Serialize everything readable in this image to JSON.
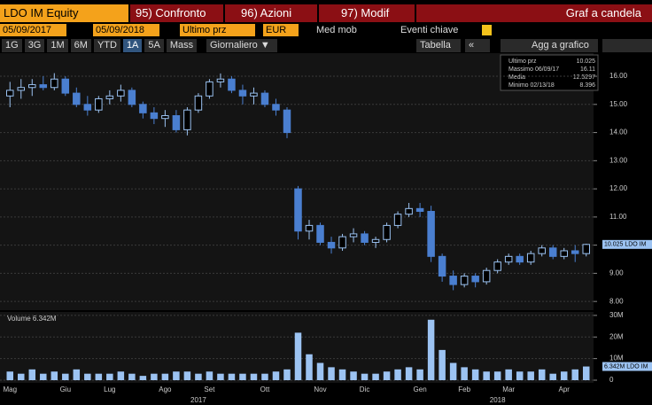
{
  "toolbar": {
    "security": "LDO IM Equity",
    "tabs": [
      "95) Confronto",
      "96) Azioni",
      "97) Modif"
    ],
    "title": "Graf a candela"
  },
  "controls": {
    "start": "05/09/2017",
    "end": "05/09/2018",
    "field": "Ultimo prz",
    "currency": "EUR",
    "checks": [
      "Med mob",
      "Eventi chiave"
    ],
    "periods": [
      "1G",
      "3G",
      "1M",
      "6M",
      "YTD",
      "1A",
      "5A",
      "Mass"
    ],
    "frequency": "Giornaliero ▼",
    "table": "Tabella",
    "collapse": "«",
    "add": "Agg a grafico"
  },
  "legend": {
    "labels": [
      "Ultimo prz",
      "Massimo 06/09/17",
      "Media",
      "Minimo 02/13/18"
    ],
    "values": [
      10.025,
      16.11,
      12.5297,
      8.396
    ]
  },
  "chart_data": [
    {
      "type": "candlestick",
      "up_color": "#9cc3f2",
      "down_color": "#4a7fd0",
      "categories": [
        "Mag",
        null,
        null,
        null,
        null,
        "Giu",
        null,
        null,
        null,
        "Lug",
        null,
        null,
        null,
        null,
        "Ago",
        null,
        null,
        null,
        "Set",
        null,
        null,
        null,
        null,
        "Ott",
        null,
        null,
        null,
        null,
        "Nov",
        null,
        null,
        null,
        "Dic",
        null,
        null,
        null,
        null,
        "Gen",
        null,
        null,
        null,
        "Feb",
        null,
        null,
        null,
        "Mar",
        null,
        null,
        null,
        null,
        "Apr",
        null,
        null
      ],
      "year_categories": [
        null,
        null,
        null,
        null,
        null,
        null,
        null,
        null,
        null,
        null,
        null,
        null,
        null,
        null,
        null,
        null,
        null,
        "2017",
        null,
        null,
        null,
        null,
        null,
        null,
        null,
        null,
        null,
        null,
        null,
        null,
        null,
        null,
        null,
        null,
        null,
        null,
        null,
        null,
        null,
        null,
        null,
        null,
        null,
        null,
        "2018",
        null,
        null,
        null,
        null,
        null,
        null,
        null,
        null
      ],
      "open": [
        15.3,
        15.5,
        15.6,
        15.7,
        15.6,
        15.9,
        15.4,
        15.0,
        14.8,
        15.2,
        15.3,
        15.5,
        15.0,
        14.7,
        14.5,
        14.6,
        14.1,
        14.8,
        15.3,
        15.8,
        15.9,
        15.5,
        15.3,
        15.4,
        15.0,
        14.8,
        12.0,
        10.5,
        10.7,
        10.1,
        9.9,
        10.3,
        10.4,
        10.1,
        10.2,
        10.7,
        11.1,
        11.3,
        11.2,
        9.6,
        8.9,
        8.6,
        8.9,
        8.7,
        9.1,
        9.4,
        9.6,
        9.4,
        9.7,
        9.9,
        9.6,
        9.8,
        9.7
      ],
      "high": [
        15.8,
        15.9,
        15.9,
        16.0,
        16.11,
        16.0,
        15.6,
        15.3,
        15.3,
        15.5,
        15.7,
        15.6,
        15.1,
        14.9,
        14.8,
        14.8,
        14.9,
        15.4,
        15.9,
        16.1,
        16.0,
        15.7,
        15.6,
        15.5,
        15.2,
        14.9,
        12.1,
        10.9,
        10.8,
        10.3,
        10.4,
        10.6,
        10.5,
        10.3,
        10.8,
        11.2,
        11.5,
        11.5,
        11.4,
        9.7,
        9.1,
        9.0,
        9.0,
        9.2,
        9.5,
        9.7,
        9.7,
        9.8,
        10.0,
        10.0,
        9.9,
        10.0,
        10.05
      ],
      "low": [
        14.9,
        15.2,
        15.3,
        15.5,
        15.5,
        15.3,
        14.9,
        14.6,
        14.7,
        15.0,
        15.1,
        14.9,
        14.5,
        14.3,
        14.2,
        14.0,
        13.9,
        14.7,
        15.2,
        15.6,
        15.4,
        15.0,
        15.0,
        14.9,
        14.6,
        13.8,
        10.2,
        10.2,
        10.0,
        9.7,
        9.8,
        10.1,
        10.0,
        9.9,
        10.1,
        10.6,
        11.0,
        11.0,
        9.4,
        8.7,
        8.4,
        8.5,
        8.5,
        8.6,
        9.0,
        9.3,
        9.3,
        9.3,
        9.6,
        9.5,
        9.5,
        9.4,
        9.6
      ],
      "close": [
        15.5,
        15.6,
        15.7,
        15.6,
        15.9,
        15.4,
        15.0,
        14.8,
        15.2,
        15.3,
        15.5,
        15.0,
        14.7,
        14.5,
        14.6,
        14.1,
        14.8,
        15.3,
        15.8,
        15.9,
        15.5,
        15.3,
        15.4,
        15.0,
        14.8,
        14.0,
        10.5,
        10.7,
        10.1,
        9.9,
        10.3,
        10.4,
        10.1,
        10.2,
        10.7,
        11.1,
        11.3,
        11.2,
        9.6,
        8.9,
        8.6,
        8.9,
        8.7,
        9.1,
        9.4,
        9.6,
        9.4,
        9.7,
        9.9,
        9.6,
        9.8,
        9.7,
        10.025
      ],
      "ylim": [
        7.69,
        16.82
      ],
      "yticks": [
        {
          "value": 8,
          "label": "8.00"
        },
        {
          "value": 9,
          "label": "9.00"
        },
        {
          "value": 10,
          "label": "10.00"
        },
        {
          "value": 11,
          "label": "11.00"
        },
        {
          "value": 12,
          "label": "12.00"
        },
        {
          "value": 13,
          "label": "13.00"
        },
        {
          "value": 14,
          "label": "14.00"
        },
        {
          "value": 15,
          "label": "15.00"
        },
        {
          "value": 16,
          "label": "16.00"
        }
      ],
      "last_label": "10.025 LDO IM",
      "last_value": 10.025,
      "grid": true
    },
    {
      "type": "bar",
      "title": "Volume 6.342M",
      "color": "#9cc3f2",
      "values": [
        4,
        3,
        5,
        3,
        4,
        3,
        5,
        3,
        3,
        3,
        4,
        3,
        2,
        3,
        3,
        4,
        4,
        3,
        4,
        3,
        3,
        3,
        3,
        3,
        4,
        5,
        22,
        12,
        8,
        6,
        5,
        4,
        3,
        3,
        4,
        5,
        6,
        5,
        28,
        14,
        8,
        6,
        5,
        4,
        4,
        5,
        4,
        4,
        5,
        3,
        4,
        5,
        6.342
      ],
      "ylim": [
        0,
        31.6
      ],
      "yticks": [
        0,
        {
          "value": 10,
          "label": "10M"
        },
        {
          "value": 20,
          "label": "20M"
        },
        {
          "value": 30,
          "label": "30M"
        }
      ],
      "last_label": "6.342M LDO IM",
      "last_value": 6.342,
      "grid": true
    }
  ]
}
